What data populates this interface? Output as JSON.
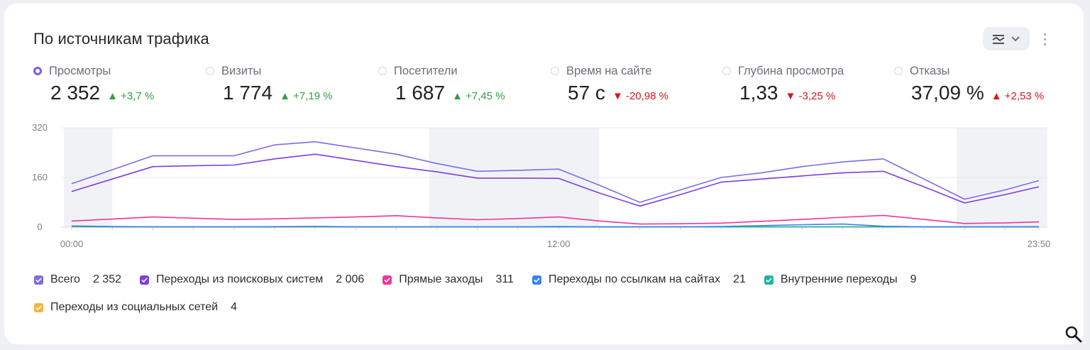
{
  "card": {
    "title": "По источникам трафика"
  },
  "icons": {
    "chart_settings": "chart-type-icon",
    "dropdown": "chevron-down-icon",
    "menu": "more-vertical-icon",
    "search": "search-icon"
  },
  "metrics": [
    {
      "label": "Просмотры",
      "value": "2 352",
      "delta": "▲ +3,7 %",
      "trend": "up-green",
      "selected": true
    },
    {
      "label": "Визиты",
      "value": "1 774",
      "delta": "▲ +7,19 %",
      "trend": "up-green",
      "selected": false
    },
    {
      "label": "Посетители",
      "value": "1 687",
      "delta": "▲ +7,45 %",
      "trend": "up-green",
      "selected": false
    },
    {
      "label": "Время на сайте",
      "value": "57 с",
      "delta": "▼ -20,98 %",
      "trend": "down-red",
      "selected": false
    },
    {
      "label": "Глубина просмотра",
      "value": "1,33",
      "delta": "▼ -3,25 %",
      "trend": "down-red",
      "selected": false
    },
    {
      "label": "Отказы",
      "value": "37,09 %",
      "delta": "▲ +2,53 %",
      "trend": "up-red",
      "selected": false
    }
  ],
  "legend": [
    {
      "name": "Всего",
      "value": "2 352",
      "color": "#7b6ee6"
    },
    {
      "name": "Переходы из поисковых систем",
      "value": "2 006",
      "color": "#7c3ee0"
    },
    {
      "name": "Прямые заходы",
      "value": "311",
      "color": "#f0359a"
    },
    {
      "name": "Переходы по ссылкам на сайтах",
      "value": "21",
      "color": "#3b82f6"
    },
    {
      "name": "Внутренние переходы",
      "value": "9",
      "color": "#1fb39a"
    },
    {
      "name": "Переходы из социальных сетей",
      "value": "4",
      "color": "#f4b53f"
    }
  ],
  "chart_data": {
    "type": "line",
    "x": [
      "00:00",
      "01:00",
      "02:00",
      "03:00",
      "04:00",
      "05:00",
      "06:00",
      "07:00",
      "08:00",
      "09:00",
      "10:00",
      "11:00",
      "12:00",
      "13:00",
      "14:00",
      "15:00",
      "16:00",
      "17:00",
      "18:00",
      "19:00",
      "20:00",
      "21:00",
      "22:00",
      "23:00",
      "23:50"
    ],
    "x_tick_labels": [
      "00:00",
      "12:00",
      "23:50"
    ],
    "y_ticks": [
      "0",
      "160",
      "320"
    ],
    "ylim": [
      0,
      320
    ],
    "grid": true,
    "shaded_x_ranges": [
      [
        "00:00",
        "01:00"
      ],
      [
        "09:00",
        "13:00"
      ],
      [
        "22:00",
        "23:50"
      ]
    ],
    "series": [
      {
        "name": "Всего",
        "color": "#7b6ee6",
        "values": [
          140,
          185,
          230,
          230,
          230,
          265,
          275,
          255,
          235,
          205,
          180,
          183,
          187,
          135,
          80,
          120,
          160,
          175,
          195,
          210,
          220,
          155,
          90,
          120,
          150
        ]
      },
      {
        "name": "Переходы из поисковых систем",
        "color": "#7c3ee0",
        "values": [
          115,
          155,
          195,
          198,
          200,
          220,
          235,
          215,
          195,
          178,
          158,
          158,
          157,
          110,
          68,
          105,
          145,
          155,
          165,
          175,
          180,
          130,
          78,
          105,
          130
        ]
      },
      {
        "name": "Прямые заходы",
        "color": "#f0359a",
        "values": [
          20,
          26,
          33,
          29,
          25,
          27,
          30,
          33,
          37,
          30,
          24,
          28,
          33,
          20,
          10,
          11,
          13,
          19,
          25,
          32,
          38,
          25,
          12,
          14,
          17
        ]
      },
      {
        "name": "Переходы по ссылкам на сайтах",
        "color": "#3b82f6",
        "values": [
          4,
          2,
          1,
          1,
          1,
          1,
          2,
          1,
          1,
          1,
          1,
          1,
          1,
          1,
          1,
          1,
          2,
          5,
          8,
          10,
          3,
          1,
          1,
          1,
          1
        ]
      },
      {
        "name": "Внутренние переходы",
        "color": "#1fb39a",
        "values": [
          2,
          1,
          1,
          1,
          1,
          1,
          1,
          1,
          1,
          1,
          1,
          1,
          2,
          1,
          1,
          1,
          1,
          1,
          1,
          1,
          1,
          1,
          1,
          1,
          1
        ]
      },
      {
        "name": "Переходы из социальных сетей",
        "color": "#f4b53f",
        "values": [
          1,
          1,
          1,
          1,
          1,
          2,
          3,
          1,
          1,
          1,
          1,
          1,
          1,
          1,
          1,
          1,
          1,
          1,
          1,
          1,
          1,
          1,
          1,
          1,
          2
        ]
      }
    ]
  }
}
